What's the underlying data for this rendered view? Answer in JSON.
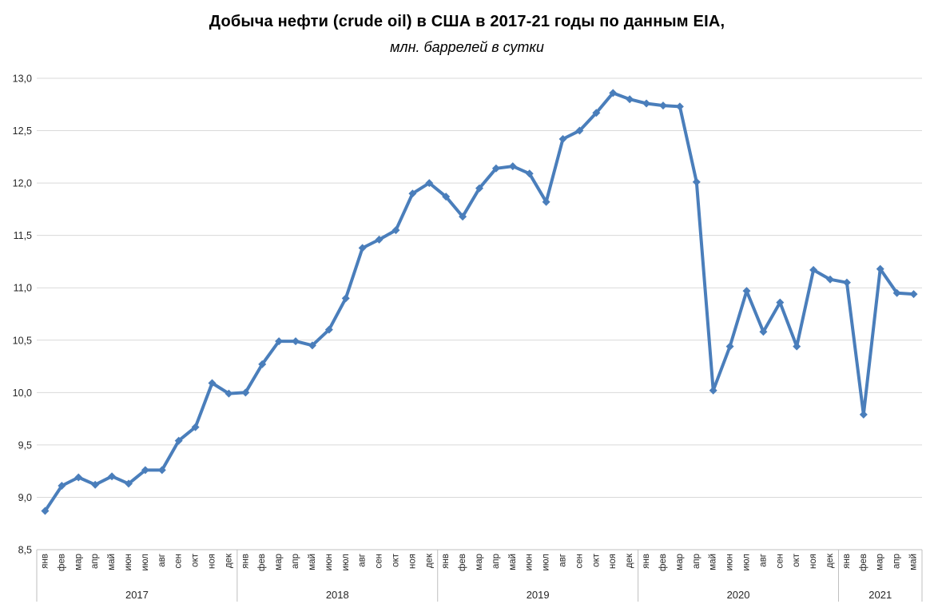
{
  "chart_data": {
    "type": "line",
    "title": "Добыча нефти (crude oil) в США в 2017-21 годы по данным EIA,",
    "subtitle": "млн. баррелей в сутки",
    "ylabel": "",
    "xlabel": "",
    "ylim": [
      8.5,
      13.0
    ],
    "ytick_step": 0.5,
    "decimal_separator": ",",
    "grid": "horizontal",
    "legend": "none",
    "line_color": "#4a7ebb",
    "gridline_color": "#d9d9d9",
    "axis_line_color": "#bfbfbf",
    "text_color": "#262626",
    "marker": "diamond",
    "groups": [
      {
        "year": "2017",
        "months": [
          "янв",
          "фев",
          "мар",
          "апр",
          "май",
          "июн",
          "июл",
          "авг",
          "сен",
          "окт",
          "ноя",
          "дек"
        ],
        "values": [
          8.87,
          9.11,
          9.19,
          9.12,
          9.2,
          9.13,
          9.26,
          9.26,
          9.54,
          9.67,
          10.09,
          9.99
        ]
      },
      {
        "year": "2018",
        "months": [
          "янв",
          "фев",
          "мар",
          "апр",
          "май",
          "июн",
          "июл",
          "авг",
          "сен",
          "окт",
          "ноя",
          "дек"
        ],
        "values": [
          10.0,
          10.27,
          10.49,
          10.49,
          10.45,
          10.6,
          10.9,
          11.38,
          11.46,
          11.55,
          11.9,
          12.0
        ]
      },
      {
        "year": "2019",
        "months": [
          "янв",
          "фев",
          "мар",
          "апр",
          "май",
          "июн",
          "июл",
          "авг",
          "сен",
          "окт",
          "ноя",
          "дек"
        ],
        "values": [
          11.87,
          11.68,
          11.95,
          12.14,
          12.16,
          12.09,
          11.82,
          12.42,
          12.5,
          12.67,
          12.86,
          12.8
        ]
      },
      {
        "year": "2020",
        "months": [
          "янв",
          "фев",
          "мар",
          "апр",
          "май",
          "июн",
          "июл",
          "авг",
          "сен",
          "окт",
          "ноя",
          "дек"
        ],
        "values": [
          12.76,
          12.74,
          12.73,
          12.01,
          10.02,
          10.44,
          10.97,
          10.58,
          10.86,
          10.44,
          11.17,
          11.08
        ]
      },
      {
        "year": "2021",
        "months": [
          "янв",
          "фев",
          "мар",
          "апр",
          "май"
        ],
        "values": [
          11.05,
          9.79,
          11.18,
          10.95,
          10.94
        ]
      }
    ]
  }
}
